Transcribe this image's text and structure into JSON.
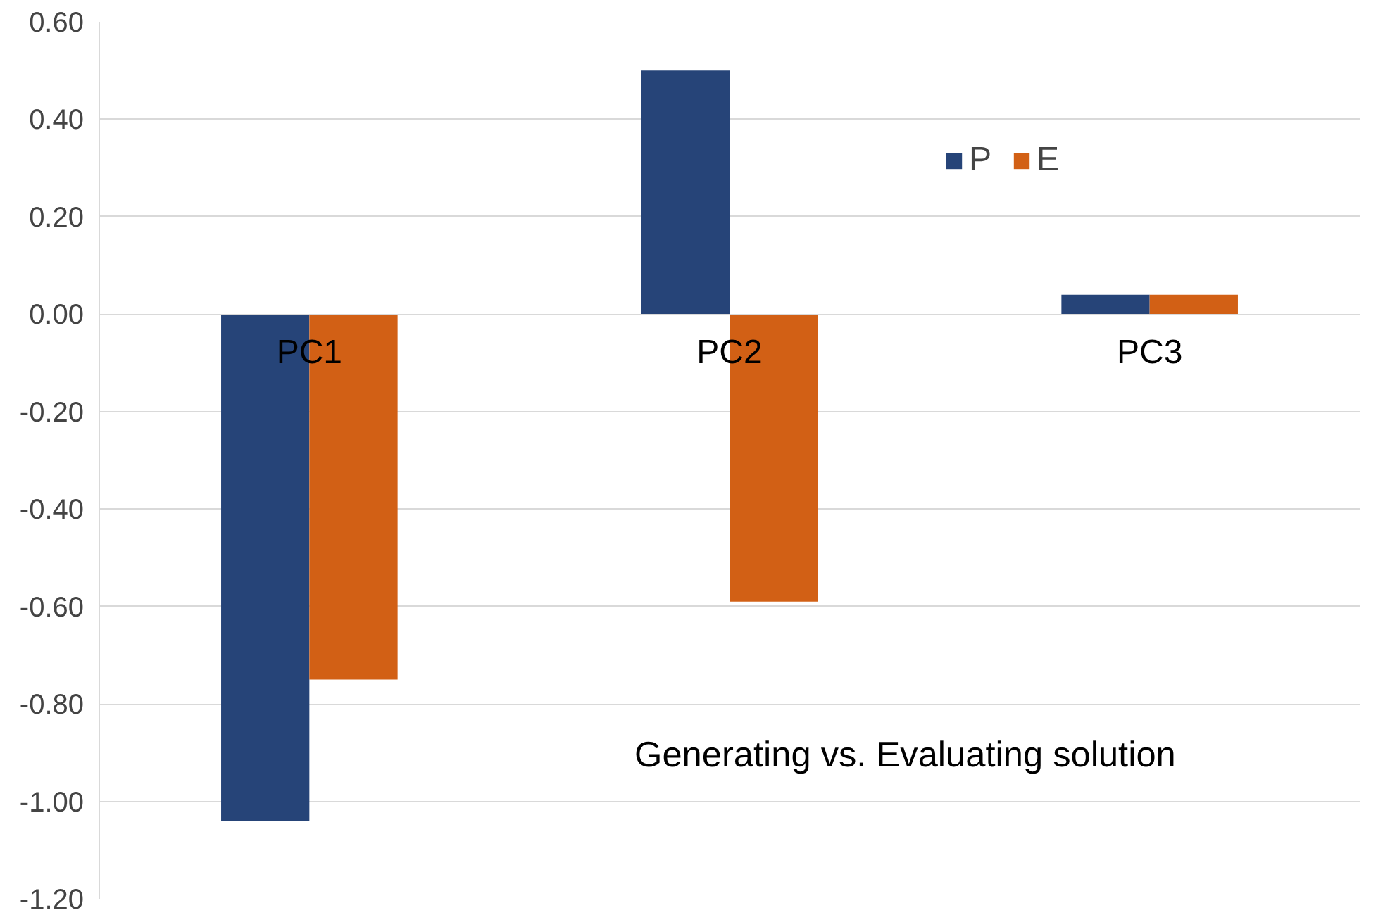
{
  "chart_data": {
    "type": "bar",
    "categories": [
      "PC1",
      "PC2",
      "PC3"
    ],
    "series": [
      {
        "name": "P",
        "color": "#264478",
        "values": [
          -1.04,
          0.5,
          0.04
        ]
      },
      {
        "name": "E",
        "color": "#d26015",
        "values": [
          -0.75,
          -0.59,
          0.04
        ]
      }
    ],
    "ylim": [
      -1.2,
      0.6
    ],
    "yticks": [
      {
        "value": -1.2,
        "label": "-1.20"
      },
      {
        "value": -1.0,
        "label": "-1.00"
      },
      {
        "value": -0.8,
        "label": "-0.80"
      },
      {
        "value": -0.6,
        "label": "-0.60"
      },
      {
        "value": -0.4,
        "label": "-0.40"
      },
      {
        "value": -0.2,
        "label": "-0.20"
      },
      {
        "value": 0,
        "label": "0.00"
      },
      {
        "value": 0.2,
        "label": "0.20"
      },
      {
        "value": 0.4,
        "label": "0.40"
      },
      {
        "value": 0.6,
        "label": "0.60"
      }
    ],
    "grid": "y",
    "legend": "top right",
    "annotations": [
      "Generating vs. Evaluating solution"
    ]
  }
}
